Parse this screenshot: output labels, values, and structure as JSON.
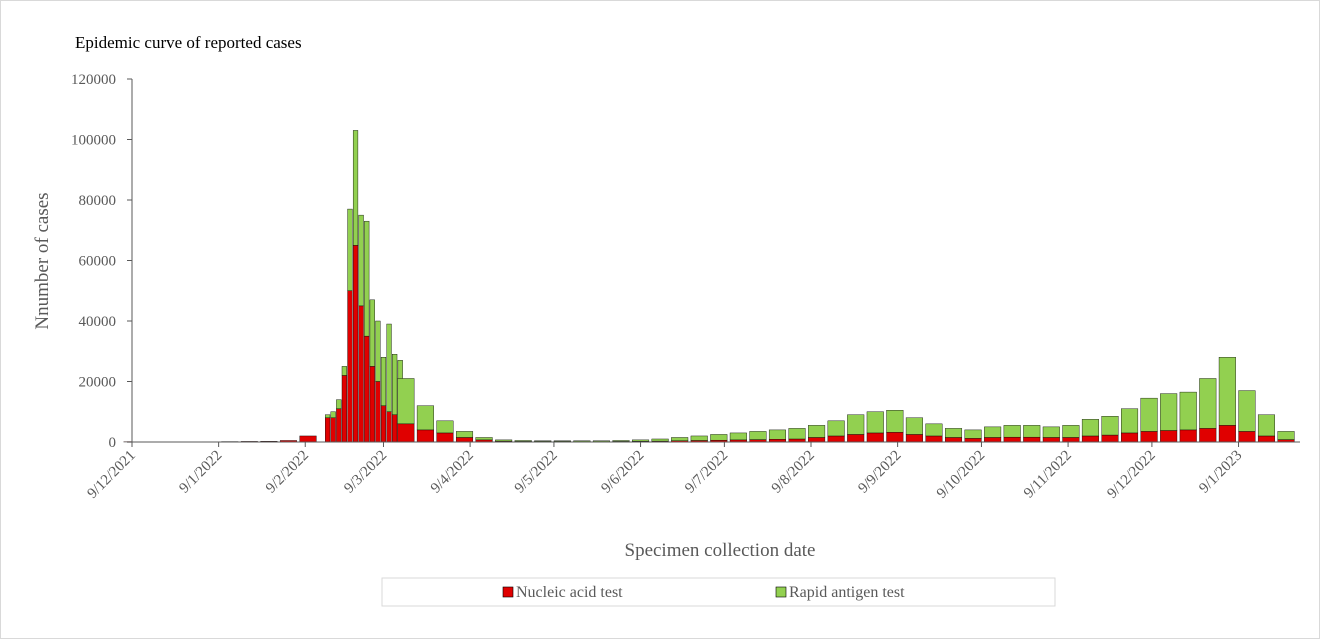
{
  "chart_data": {
    "type": "stacked-bar",
    "title": "Epidemic curve of reported cases",
    "x_label": "Specimen collection date",
    "y_label": "Nnumber of cases",
    "x": [
      "9/12/2021",
      "16/12/2021",
      "23/12/2021",
      "30/12/2021",
      "6/1/2022",
      "13/1/2022",
      "20/1/2022",
      "27/1/2022",
      "3/2/2022",
      "10/2/2022",
      "17/2/2022",
      "19/2/2022",
      "21/2/2022",
      "23/2/2022",
      "25/2/2022",
      "27/2/2022",
      "1/3/2022",
      "3/3/2022",
      "5/3/2022",
      "7/3/2022",
      "9/3/2022",
      "11/3/2022",
      "13/3/2022",
      "15/3/2022",
      "17/3/2022",
      "24/3/2022",
      "31/3/2022",
      "7/4/2022",
      "14/4/2022",
      "21/4/2022",
      "28/4/2022",
      "5/5/2022",
      "12/5/2022",
      "19/5/2022",
      "26/5/2022",
      "2/6/2022",
      "9/6/2022",
      "16/6/2022",
      "23/6/2022",
      "30/6/2022",
      "7/7/2022",
      "14/7/2022",
      "21/7/2022",
      "28/7/2022",
      "4/8/2022",
      "11/8/2022",
      "18/8/2022",
      "25/8/2022",
      "1/9/2022",
      "8/9/2022",
      "15/9/2022",
      "22/9/2022",
      "29/9/2022",
      "6/10/2022",
      "13/10/2022",
      "20/10/2022",
      "27/10/2022",
      "3/11/2022",
      "10/11/2022",
      "17/11/2022",
      "24/11/2022",
      "1/12/2022",
      "8/12/2022",
      "15/12/2022",
      "22/12/2022",
      "29/12/2022",
      "5/1/2023",
      "12/1/2023",
      "19/1/2023",
      "26/1/2023"
    ],
    "series": [
      {
        "name": "Nucleic acid test",
        "color": "#e00000",
        "values": [
          50,
          50,
          80,
          80,
          100,
          150,
          200,
          250,
          500,
          2000,
          8000,
          8000,
          11000,
          22000,
          50000,
          65000,
          45000,
          35000,
          25000,
          20000,
          12000,
          10000,
          9000,
          8000,
          6000,
          4000,
          3000,
          1500,
          700,
          300,
          200,
          200,
          200,
          150,
          150,
          200,
          250,
          300,
          400,
          500,
          600,
          700,
          800,
          900,
          1000,
          1500,
          2000,
          2500,
          3000,
          3200,
          2500,
          2000,
          1500,
          1200,
          1500,
          1600,
          1600,
          1500,
          1500,
          2000,
          2300,
          3000,
          3500,
          3800,
          4000,
          4500,
          5500,
          3500,
          2000,
          800
        ]
      },
      {
        "name": "Rapid antigen test",
        "color": "#92d050",
        "values": [
          0,
          0,
          0,
          0,
          0,
          0,
          0,
          0,
          0,
          0,
          1000,
          2000,
          3000,
          3000,
          27000,
          38000,
          30000,
          38000,
          22000,
          20000,
          16000,
          29000,
          20000,
          19000,
          15000,
          8000,
          4000,
          2000,
          800,
          400,
          300,
          200,
          200,
          250,
          250,
          300,
          450,
          700,
          1100,
          1500,
          1900,
          2300,
          2700,
          3100,
          3500,
          4000,
          5000,
          6500,
          7000,
          7300,
          5500,
          4000,
          3000,
          2800,
          3500,
          3900,
          3900,
          3500,
          4000,
          5500,
          6200,
          8000,
          11000,
          12200,
          12500,
          16500,
          22500,
          13500,
          7000,
          2700
        ]
      }
    ],
    "xlim": [
      "9/12/2021",
      "31/1/2023"
    ],
    "xticks": [
      "9/12/2021",
      "9/1/2022",
      "9/2/2022",
      "9/3/2022",
      "9/4/2022",
      "9/5/2022",
      "9/6/2022",
      "9/7/2022",
      "9/8/2022",
      "9/9/2022",
      "9/10/2022",
      "9/11/2022",
      "9/12/2022",
      "9/1/2023"
    ],
    "ylim": [
      0,
      120000
    ],
    "yticks": [
      0,
      20000,
      40000,
      60000,
      80000,
      100000,
      120000
    ],
    "grid": false,
    "legend": "bottom"
  }
}
